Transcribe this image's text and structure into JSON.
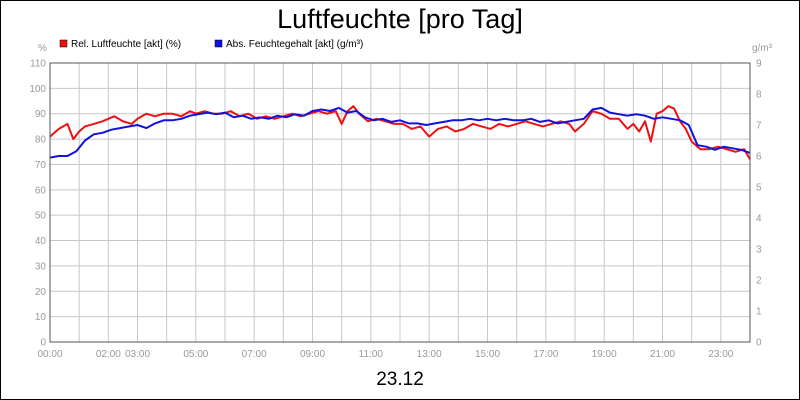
{
  "chart_data": {
    "type": "line",
    "title": "Luftfeuchte [pro Tag]",
    "date_label": "23.12",
    "y_left_unit": "%",
    "y_right_unit": "g/m³",
    "y_left_range": [
      0,
      110
    ],
    "y_left_ticks": [
      0,
      10,
      20,
      30,
      40,
      50,
      60,
      70,
      80,
      90,
      100,
      110
    ],
    "y_right_range": [
      0,
      9
    ],
    "y_right_ticks": [
      0,
      1,
      2,
      3,
      4,
      5,
      6,
      7,
      8,
      9
    ],
    "x_range_hours": [
      0,
      24
    ],
    "x_ticks": [
      {
        "h": 0,
        "label": "00:00"
      },
      {
        "h": 2,
        "label": "02:00"
      },
      {
        "h": 3,
        "label": "03:00"
      },
      {
        "h": 5,
        "label": "05:00"
      },
      {
        "h": 7,
        "label": "07:00"
      },
      {
        "h": 9,
        "label": "09:00"
      },
      {
        "h": 11,
        "label": "11:00"
      },
      {
        "h": 13,
        "label": "13:00"
      },
      {
        "h": 15,
        "label": "15:00"
      },
      {
        "h": 17,
        "label": "17:00"
      },
      {
        "h": 19,
        "label": "19:00"
      },
      {
        "h": 21,
        "label": "21:00"
      },
      {
        "h": 23,
        "label": "23:00"
      }
    ],
    "grid": true,
    "legend_position": "top-left",
    "series": [
      {
        "name": "Rel. Luftfeuchte [akt] (%)",
        "axis": "left",
        "color": "#ee1111",
        "x": [
          0,
          0.3,
          0.6,
          0.8,
          1.0,
          1.2,
          1.5,
          1.8,
          2.0,
          2.2,
          2.5,
          2.8,
          3.0,
          3.3,
          3.6,
          3.9,
          4.2,
          4.5,
          4.8,
          5.0,
          5.3,
          5.6,
          5.9,
          6.2,
          6.5,
          6.8,
          7.1,
          7.4,
          7.7,
          8.0,
          8.3,
          8.6,
          8.9,
          9.2,
          9.5,
          9.8,
          10.0,
          10.2,
          10.4,
          10.6,
          10.9,
          11.2,
          11.5,
          11.8,
          12.1,
          12.4,
          12.7,
          13.0,
          13.3,
          13.6,
          13.9,
          14.2,
          14.5,
          14.8,
          15.1,
          15.4,
          15.7,
          16.0,
          16.3,
          16.6,
          16.9,
          17.2,
          17.5,
          17.8,
          18.0,
          18.3,
          18.6,
          18.9,
          19.2,
          19.5,
          19.8,
          20.0,
          20.2,
          20.4,
          20.6,
          20.8,
          21.0,
          21.2,
          21.4,
          21.6,
          21.8,
          22.0,
          22.3,
          22.6,
          22.9,
          23.2,
          23.5,
          23.8,
          24.0
        ],
        "values": [
          81,
          84,
          86,
          80,
          83,
          85,
          86,
          87,
          88,
          89,
          87,
          86,
          88,
          90,
          89,
          90,
          90,
          89,
          91,
          90,
          91,
          90,
          90,
          91,
          89,
          90,
          88,
          89,
          88,
          89,
          90,
          89,
          90,
          91,
          90,
          91,
          86,
          91,
          93,
          90,
          87,
          88,
          87,
          86,
          86,
          84,
          85,
          81,
          84,
          85,
          83,
          84,
          86,
          85,
          84,
          86,
          85,
          86,
          87,
          86,
          85,
          86,
          87,
          86,
          83,
          86,
          91,
          90,
          88,
          88,
          84,
          86,
          83,
          87,
          79,
          90,
          91,
          93,
          92,
          87,
          84,
          79,
          76,
          76,
          77,
          76,
          75,
          76,
          72
        ]
      },
      {
        "name": "Abs. Feuchtegehalt [akt] (g/m³)",
        "axis": "right",
        "color": "#1111dd",
        "x": [
          0,
          0.3,
          0.6,
          0.9,
          1.2,
          1.5,
          1.8,
          2.1,
          2.4,
          2.7,
          3.0,
          3.3,
          3.6,
          3.9,
          4.2,
          4.5,
          4.8,
          5.1,
          5.4,
          5.7,
          6.0,
          6.3,
          6.6,
          6.9,
          7.2,
          7.5,
          7.8,
          8.1,
          8.4,
          8.7,
          9.0,
          9.3,
          9.6,
          9.9,
          10.2,
          10.5,
          10.8,
          11.1,
          11.4,
          11.7,
          12.0,
          12.3,
          12.6,
          12.9,
          13.2,
          13.5,
          13.8,
          14.1,
          14.4,
          14.7,
          15.0,
          15.3,
          15.6,
          15.9,
          16.2,
          16.5,
          16.8,
          17.1,
          17.4,
          17.7,
          18.0,
          18.3,
          18.6,
          18.9,
          19.2,
          19.5,
          19.8,
          20.1,
          20.4,
          20.7,
          21.0,
          21.3,
          21.6,
          21.9,
          22.2,
          22.5,
          22.8,
          23.1,
          23.4,
          23.7,
          24.0
        ],
        "values": [
          5.95,
          6.0,
          6.0,
          6.15,
          6.5,
          6.7,
          6.75,
          6.85,
          6.9,
          6.95,
          7.0,
          6.9,
          7.05,
          7.15,
          7.15,
          7.2,
          7.3,
          7.35,
          7.4,
          7.35,
          7.4,
          7.25,
          7.3,
          7.2,
          7.25,
          7.2,
          7.3,
          7.25,
          7.35,
          7.3,
          7.45,
          7.5,
          7.45,
          7.55,
          7.4,
          7.45,
          7.25,
          7.15,
          7.2,
          7.1,
          7.15,
          7.05,
          7.05,
          7.0,
          7.05,
          7.1,
          7.15,
          7.15,
          7.2,
          7.15,
          7.2,
          7.15,
          7.2,
          7.15,
          7.15,
          7.2,
          7.1,
          7.15,
          7.05,
          7.1,
          7.15,
          7.2,
          7.5,
          7.55,
          7.4,
          7.35,
          7.3,
          7.35,
          7.3,
          7.2,
          7.25,
          7.2,
          7.15,
          7.0,
          6.35,
          6.3,
          6.2,
          6.3,
          6.25,
          6.2,
          6.1
        ]
      }
    ]
  }
}
